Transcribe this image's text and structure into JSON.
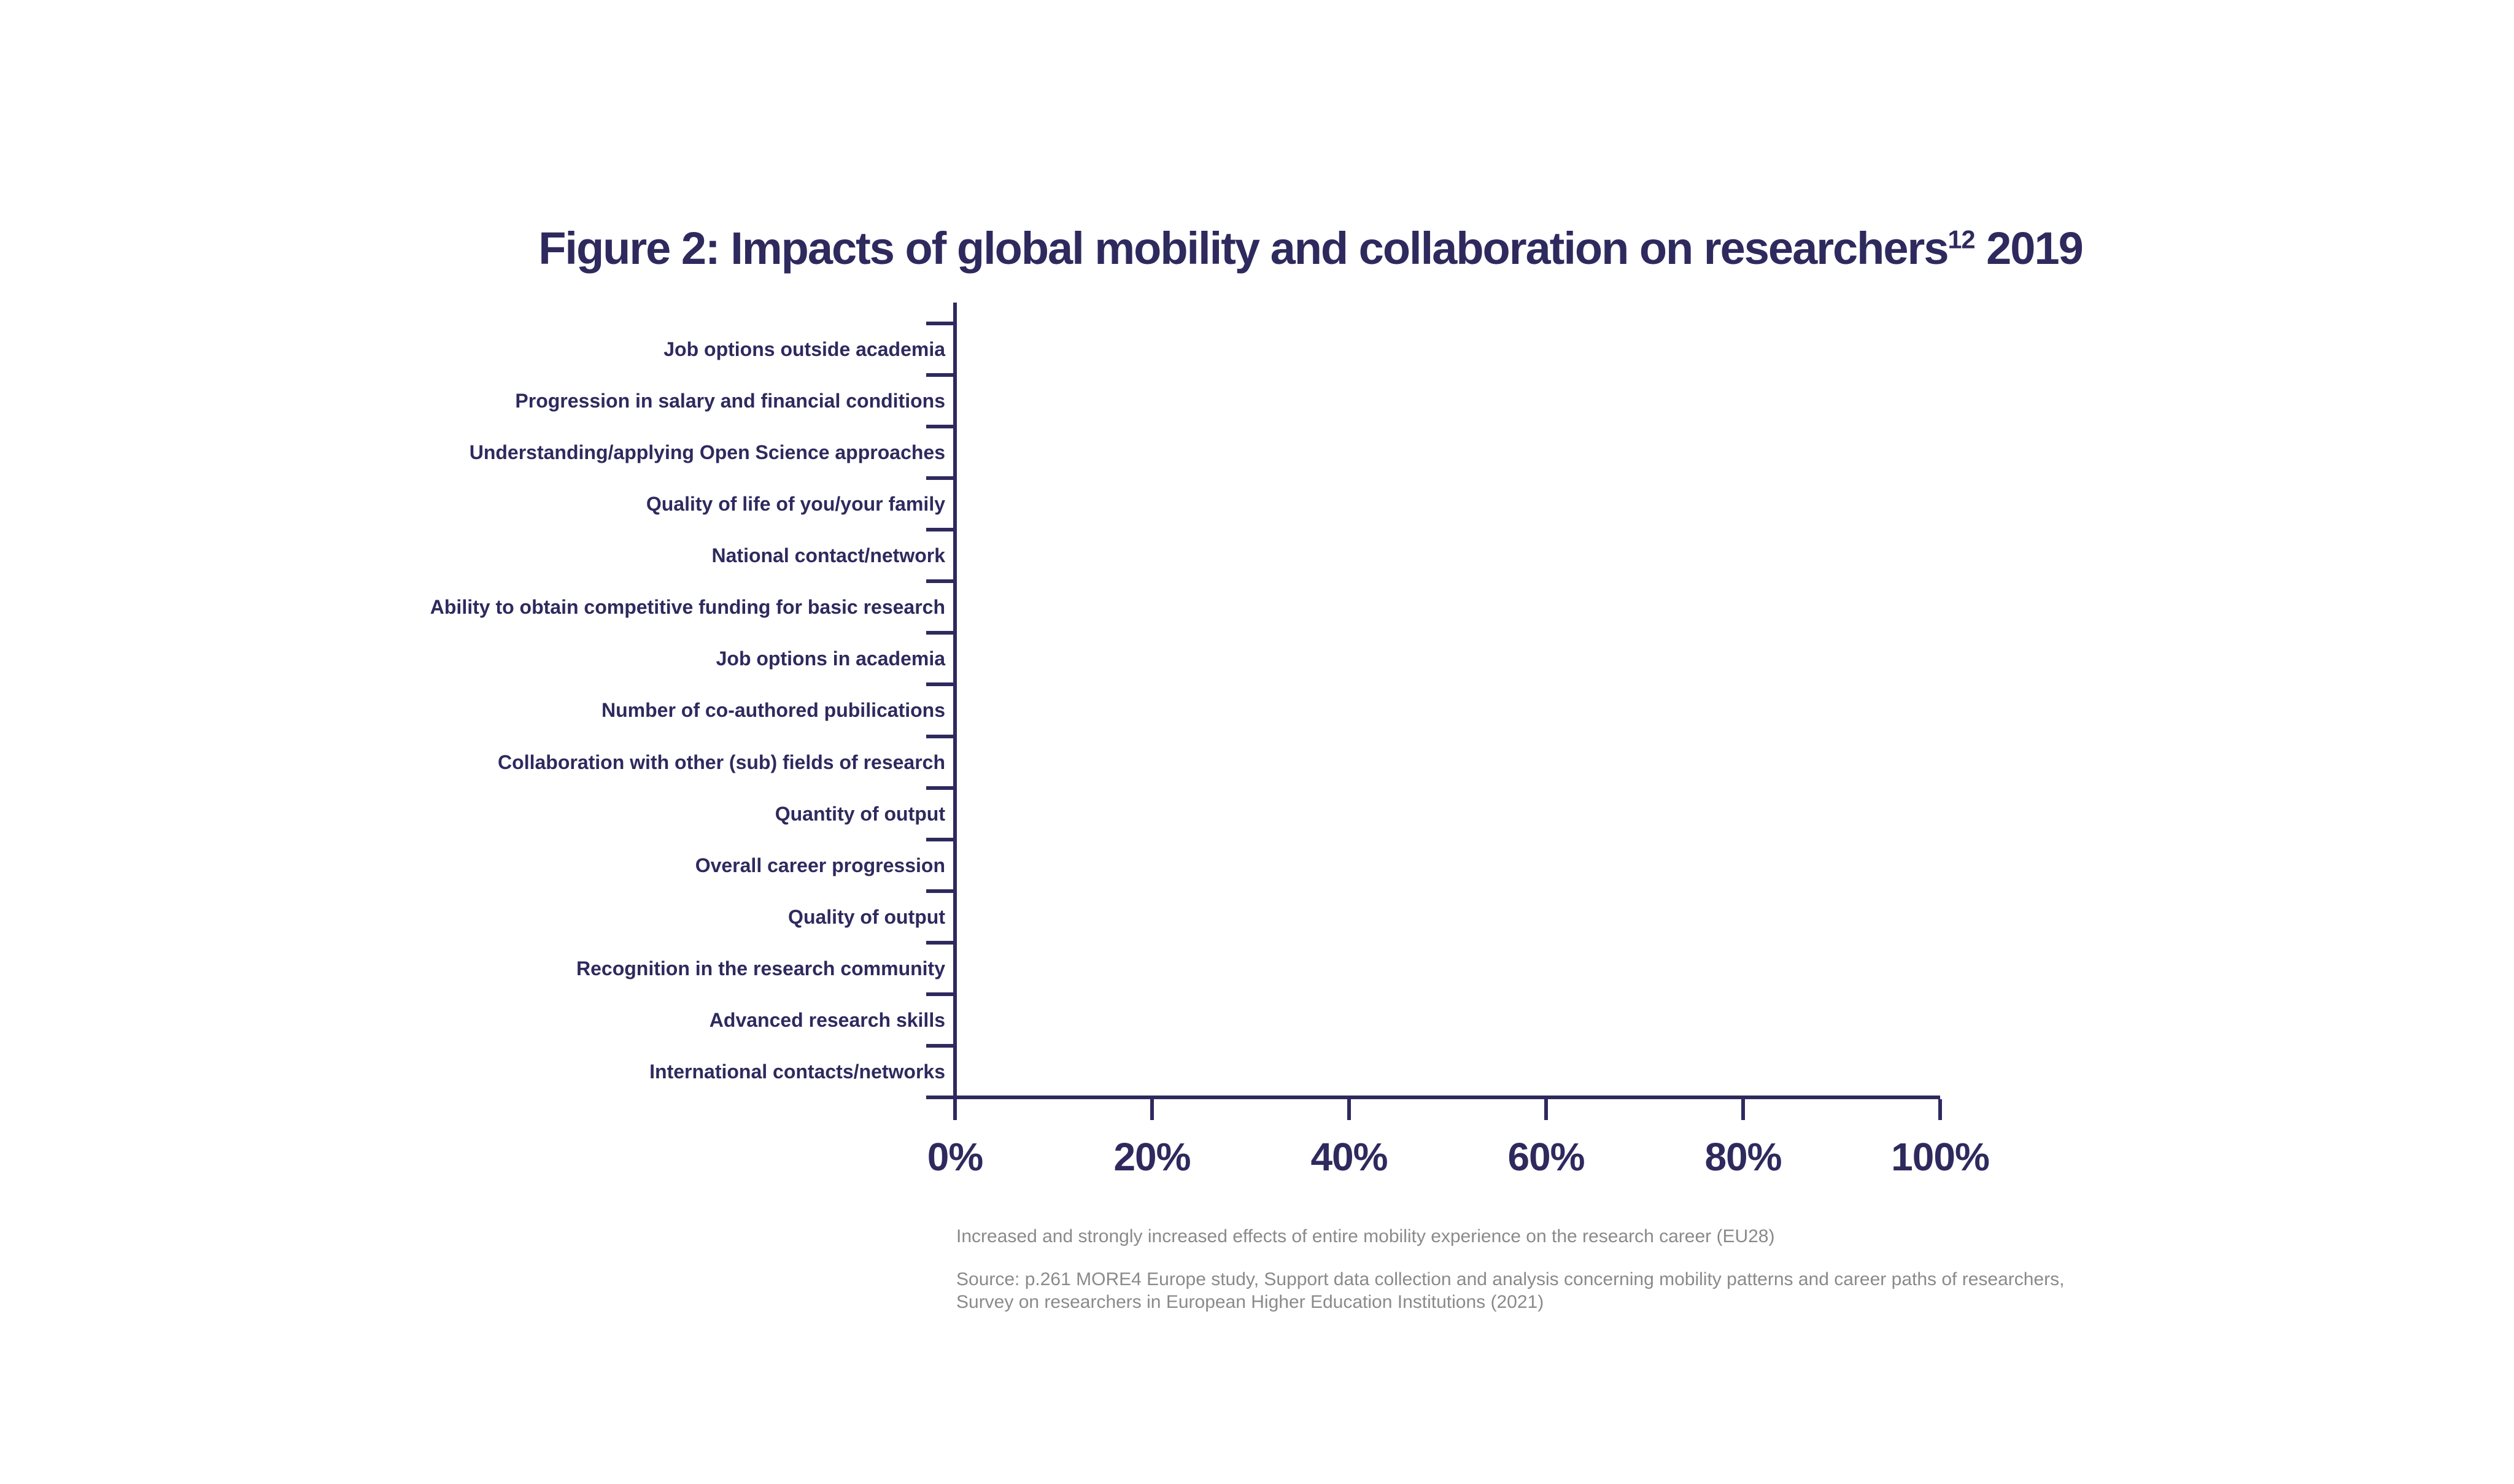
{
  "title": {
    "main": "Figure 2: Impacts of global mobility and collaboration on researchers",
    "superscript": "12",
    "suffix": " 2019"
  },
  "chart_data": {
    "type": "bar",
    "orientation": "horizontal",
    "title": "Figure 2: Impacts of global mobility and collaboration on researchers¹² 2019",
    "categories": [
      "Job options outside academia",
      "Progression in salary and financial conditions",
      "Understanding/applying Open Science approaches",
      "Quality of life of you/your family",
      "National contact/network",
      "Ability to obtain competitive funding for basic research",
      "Job options in academia",
      "Number of co-authored pubilications",
      "Collaboration with other (sub) fields of research",
      "Quantity of output",
      "Overall career progression",
      "Quality of output",
      "Recognition in the research community",
      "Advanced research skills",
      "International contacts/networks"
    ],
    "values": null,
    "notes": "Plot area is empty in the screenshot — no bars are rendered for any category.",
    "xlabel": "",
    "ylabel": "",
    "x_axis": {
      "ticks": [
        "0%",
        "20%",
        "40%",
        "60%",
        "80%",
        "100%"
      ],
      "range": [
        0,
        100
      ],
      "unit": "%"
    },
    "grid": false,
    "legend": false,
    "colors": {
      "axis": "#2e2a5e",
      "label_text": "#2e2a5e",
      "caption_text": "#8a8a8a",
      "background": "#ffffff"
    }
  },
  "caption": "Increased and strongly increased effects of entire mobility experience on the research career (EU28)",
  "source": {
    "line1": "Source: p.261 MORE4 Europe study, Support data collection and analysis concerning mobility patterns and career paths of researchers,",
    "line2": "Survey on researchers in European Higher Education Institutions (2021)"
  }
}
